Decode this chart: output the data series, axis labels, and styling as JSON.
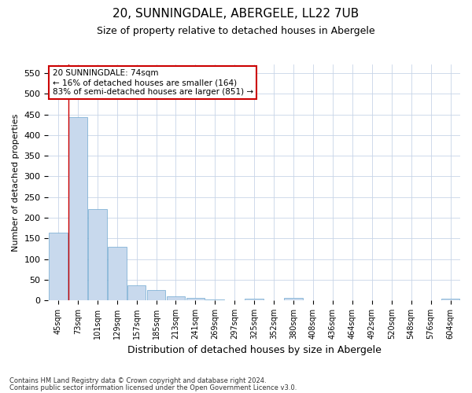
{
  "title1": "20, SUNNINGDALE, ABERGELE, LL22 7UB",
  "title2": "Size of property relative to detached houses in Abergele",
  "xlabel": "Distribution of detached houses by size in Abergele",
  "ylabel": "Number of detached properties",
  "categories": [
    "45sqm",
    "73sqm",
    "101sqm",
    "129sqm",
    "157sqm",
    "185sqm",
    "213sqm",
    "241sqm",
    "269sqm",
    "297sqm",
    "325sqm",
    "352sqm",
    "380sqm",
    "408sqm",
    "436sqm",
    "464sqm",
    "492sqm",
    "520sqm",
    "548sqm",
    "576sqm",
    "604sqm"
  ],
  "values": [
    164,
    443,
    221,
    129,
    37,
    25,
    10,
    5,
    2,
    0,
    4,
    0,
    5,
    0,
    0,
    0,
    0,
    0,
    0,
    0,
    4
  ],
  "bar_color": "#c8d9ed",
  "bar_edge_color": "#6fa8d0",
  "vline_x_index": 1,
  "vline_color": "#cc0000",
  "annotation_line1": "20 SUNNINGDALE: 74sqm",
  "annotation_line2": "← 16% of detached houses are smaller (164)",
  "annotation_line3": "83% of semi-detached houses are larger (851) →",
  "annotation_box_color": "#ffffff",
  "annotation_box_edge": "#cc0000",
  "ylim": [
    0,
    570
  ],
  "yticks": [
    0,
    50,
    100,
    150,
    200,
    250,
    300,
    350,
    400,
    450,
    500,
    550
  ],
  "footnote1": "Contains HM Land Registry data © Crown copyright and database right 2024.",
  "footnote2": "Contains public sector information licensed under the Open Government Licence v3.0.",
  "background_color": "#ffffff",
  "grid_color": "#c8d4e8",
  "title1_fontsize": 11,
  "title2_fontsize": 9,
  "ylabel_fontsize": 8,
  "xlabel_fontsize": 9
}
